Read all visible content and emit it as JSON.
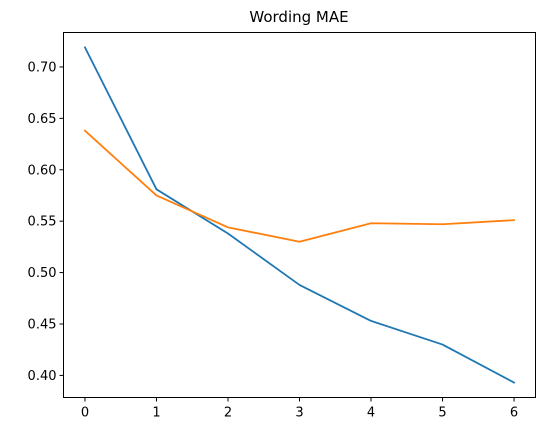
{
  "chart_data": {
    "type": "line",
    "title": "Wording MAE",
    "xlabel": "",
    "ylabel": "",
    "x": [
      0,
      1,
      2,
      3,
      4,
      5,
      6
    ],
    "xticks": [
      "0",
      "1",
      "2",
      "3",
      "4",
      "5",
      "6"
    ],
    "yticks": [
      "0.40",
      "0.45",
      "0.50",
      "0.55",
      "0.60",
      "0.65",
      "0.70"
    ],
    "xlim": [
      -0.3,
      6.3
    ],
    "ylim": [
      0.3785,
      0.7335
    ],
    "grid": false,
    "legend": "none",
    "series": [
      {
        "color": "#1f77b4",
        "values": [
          0.719,
          0.581,
          0.538,
          0.488,
          0.453,
          0.43,
          0.393
        ]
      },
      {
        "color": "#ff7f0e",
        "values": [
          0.638,
          0.575,
          0.544,
          0.53,
          0.548,
          0.547,
          0.551
        ]
      }
    ]
  }
}
